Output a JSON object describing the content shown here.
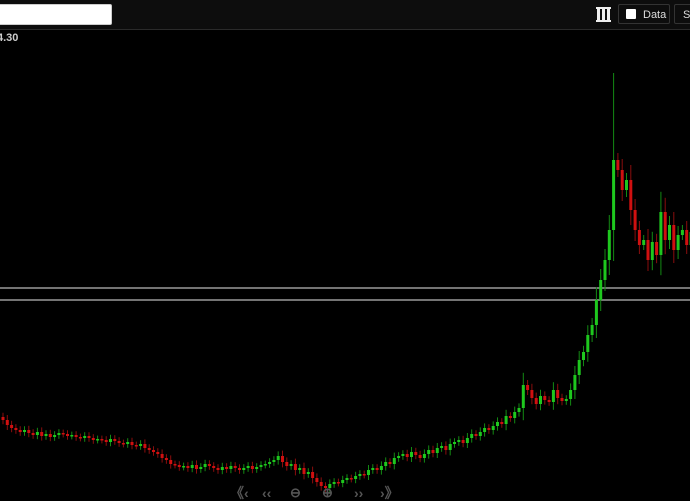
{
  "toolbar": {
    "symbol_input_value": "",
    "columns_icon": "columns-icon",
    "data_label": "Data",
    "data_checked": false,
    "second_button_label": "St"
  },
  "price_label": "4.30",
  "colors": {
    "up": "#1ec81e",
    "down": "#d01010",
    "level_line": "#9a9a9a",
    "background": "#000000"
  },
  "navigation": {
    "icons": [
      "first-page-icon",
      "previous-icon",
      "zoom-out-icon",
      "zoom-in-icon",
      "next-icon",
      "last-page-icon"
    ]
  },
  "chart_data": {
    "type": "candlestick",
    "grid": false,
    "horizontal_levels": [
      21.2,
      20.0
    ],
    "closes": [
      8.0,
      7.5,
      7.2,
      7.0,
      6.8,
      7.0,
      6.7,
      6.5,
      6.8,
      6.4,
      6.6,
      6.3,
      6.5,
      6.7,
      6.6,
      6.4,
      6.5,
      6.3,
      6.2,
      6.4,
      6.2,
      6.0,
      6.1,
      6.0,
      5.8,
      6.1,
      5.9,
      5.7,
      5.6,
      5.8,
      5.5,
      5.4,
      5.6,
      5.2,
      5.0,
      4.8,
      4.6,
      4.2,
      4.0,
      3.6,
      3.5,
      3.3,
      3.4,
      3.2,
      3.5,
      3.1,
      3.3,
      3.6,
      3.4,
      3.2,
      3.0,
      3.3,
      3.1,
      3.4,
      3.2,
      3.0,
      3.2,
      3.4,
      3.1,
      3.3,
      3.5,
      3.6,
      3.8,
      4.0,
      4.4,
      3.8,
      3.4,
      3.6,
      3.0,
      3.2,
      2.6,
      2.8,
      2.2,
      1.8,
      1.4,
      1.2,
      1.6,
      1.8,
      1.7,
      2.0,
      2.2,
      2.1,
      2.4,
      2.6,
      2.5,
      3.0,
      3.2,
      3.0,
      3.4,
      3.8,
      3.6,
      4.2,
      4.4,
      4.6,
      4.3,
      4.8,
      4.5,
      4.2,
      4.6,
      5.0,
      4.7,
      5.2,
      5.4,
      5.0,
      5.6,
      5.8,
      6.0,
      5.7,
      6.2,
      6.6,
      6.4,
      6.8,
      7.2,
      7.0,
      7.4,
      7.8,
      7.6,
      8.4,
      8.2,
      8.8,
      9.2,
      11.5,
      11.0,
      10.2,
      9.6,
      10.4,
      10.0,
      9.8,
      11.0,
      10.2,
      9.9,
      10.1,
      11.0,
      12.5,
      14.0,
      14.8,
      16.5,
      17.5,
      20.0,
      22.0,
      24.0,
      27.0,
      34.0,
      33.0,
      31.0,
      32.0,
      29.0,
      27.0,
      25.5,
      26.0,
      24.0,
      25.8,
      24.5,
      28.8,
      26.0,
      27.5,
      25.0,
      26.5,
      27.0,
      25.5,
      26.8
    ],
    "spike_high": 42.7
  }
}
